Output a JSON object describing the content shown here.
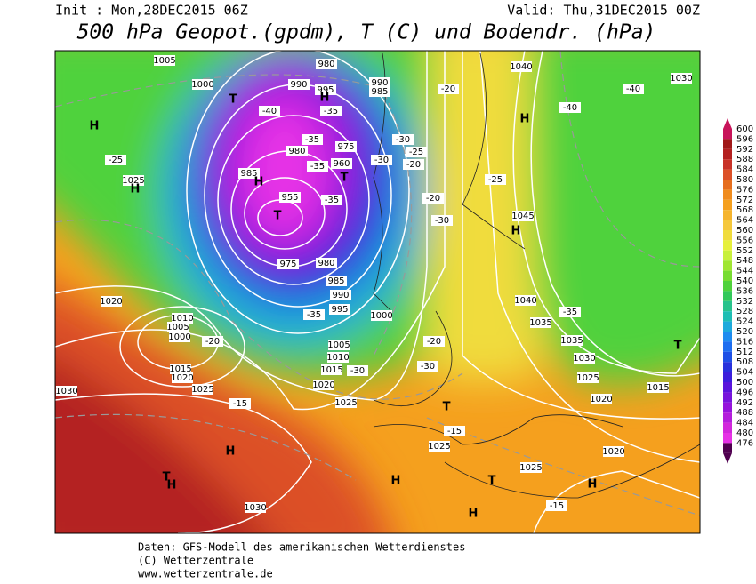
{
  "header": {
    "init": "Init : Mon,28DEC2015 06Z",
    "valid": "Valid: Thu,31DEC2015 00Z",
    "title": "500 hPa Geopot.(gpdm), T (C) und Bodendr. (hPa)"
  },
  "map_labels": [
    "1005",
    "1000",
    "990",
    "995",
    "990",
    "985",
    "980",
    "H",
    "T",
    "H",
    "1025",
    "H",
    "-25",
    "985",
    "H",
    "980",
    "975",
    "960",
    "T",
    "955",
    "T",
    "975",
    "980",
    "985",
    "990",
    "995",
    "1000",
    "1005",
    "1010",
    "1015",
    "1020",
    "1025",
    "1020",
    "1010",
    "1005",
    "1000",
    "1015",
    "1020",
    "1025",
    "-15",
    "1030",
    "H",
    "T",
    "H",
    "1030",
    "H",
    "H",
    "T",
    "1025",
    "-15",
    "H",
    "1020",
    "T",
    "-15",
    "1025",
    "1040",
    "1045",
    "H",
    "1040",
    "1035",
    "1035",
    "1030",
    "1025",
    "1020",
    "1015",
    "T",
    "H",
    "-20",
    "-40",
    "-40",
    "1030",
    "-35",
    "-25",
    "-20",
    "-30",
    "-20",
    "-30",
    "-30",
    "-35",
    "-20",
    "-40",
    "-35",
    "-35",
    "-35",
    "-35",
    "-30",
    "-30",
    "-25",
    "-20"
  ],
  "colorbar": {
    "values": [
      600,
      596,
      592,
      588,
      584,
      580,
      576,
      572,
      568,
      564,
      560,
      556,
      552,
      548,
      544,
      540,
      536,
      532,
      528,
      524,
      520,
      516,
      512,
      508,
      504,
      500,
      496,
      492,
      488,
      484,
      480,
      476
    ],
    "colors": [
      "#c8145a",
      "#a01818",
      "#b42020",
      "#c83228",
      "#dc5028",
      "#e66e1e",
      "#f08c1e",
      "#f5a01e",
      "#f5b42d",
      "#f5c83c",
      "#f0dc3c",
      "#e6f03c",
      "#c8f03c",
      "#a0e632",
      "#78dc32",
      "#50d23c",
      "#32c85a",
      "#28c38c",
      "#1ebeb4",
      "#1eaadc",
      "#1e8cf0",
      "#1e6ef0",
      "#1e50e6",
      "#2832dc",
      "#3c1edc",
      "#5a14dc",
      "#7814dc",
      "#9614dc",
      "#b41edc",
      "#d228dc",
      "#e632e6",
      "#500050"
    ]
  },
  "footer": [
    "Daten: GFS-Modell des amerikanischen Wetterdienstes",
    "(C) Wetterzentrale",
    "www.wetterzentrale.de"
  ]
}
